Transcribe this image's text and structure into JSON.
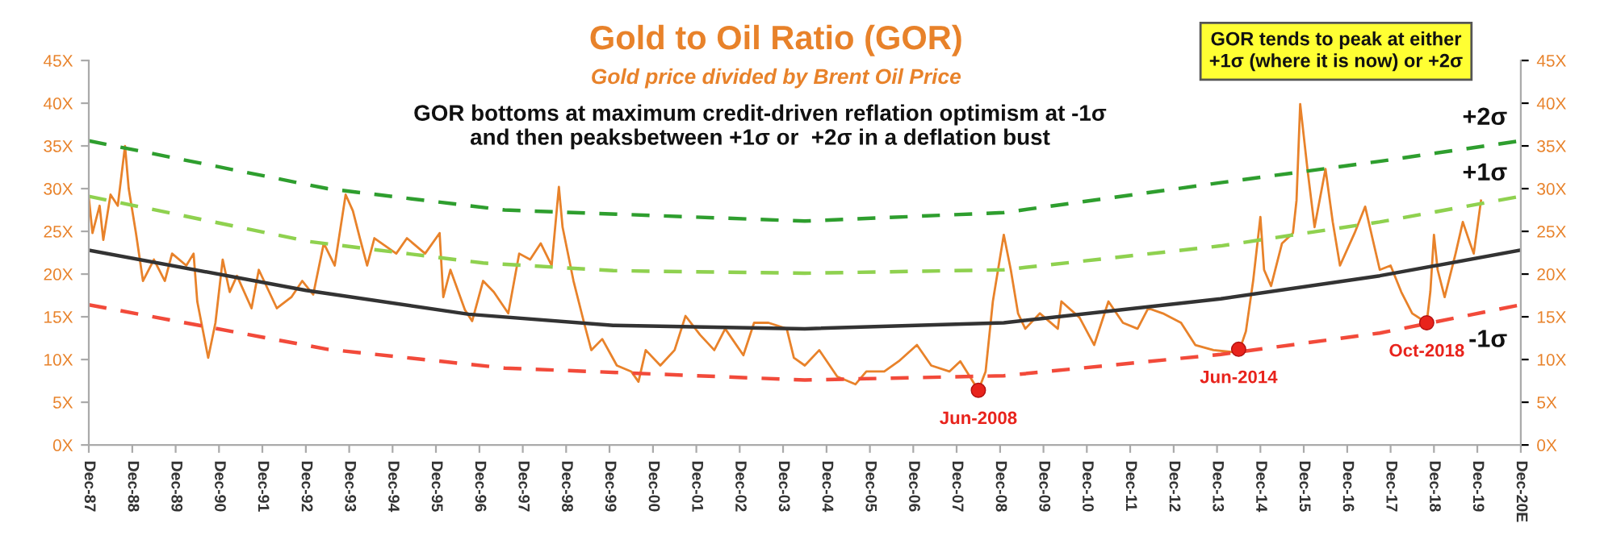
{
  "chart_data": {
    "type": "line",
    "title": "Gold to Oil Ratio (GOR)",
    "subtitle": "Gold price divided by Brent Oil Price",
    "annotations": [
      "GOR bottoms at maximum credit-driven reflation optimism at -1σ\nand then peaksbetween +1σ or  +2σ in a deflation bust",
      "GOR tends to peak at either\n+1σ (where it is now) or +2σ",
      {
        "text": "Jun-2008",
        "x": "2008-06",
        "y": 6.4
      },
      {
        "text": "Jun-2014",
        "x": "2014-06",
        "y": 11.2
      },
      {
        "text": "Oct-2018",
        "x": "2018-10",
        "y": 14.3
      }
    ],
    "series": [
      {
        "color": "#e8822a",
        "line_style": "solid",
        "x": [
          "1987-12",
          "1988-01",
          "1988-03",
          "1988-04",
          "1988-06",
          "1988-08",
          "1988-10",
          "1988-11",
          "1989-01",
          "1989-03",
          "1989-06",
          "1989-09",
          "1989-11",
          "1990-03",
          "1990-05",
          "1990-06",
          "1990-09",
          "1990-11",
          "1991-01",
          "1991-03",
          "1991-05",
          "1991-09",
          "1991-11",
          "1992-04",
          "1992-08",
          "1992-11",
          "1993-02",
          "1993-05",
          "1993-08",
          "1993-11",
          "1994-01",
          "1994-03",
          "1994-05",
          "1994-07",
          "1995-01",
          "1995-04",
          "1995-09",
          "1996-01",
          "1996-02",
          "1996-04",
          "1996-08",
          "1996-10",
          "1997-01",
          "1997-04",
          "1997-08",
          "1997-11",
          "1998-02",
          "1998-05",
          "1998-08",
          "1998-10",
          "1998-11",
          "1999-02",
          "1999-05",
          "1999-07",
          "1999-10",
          "2000-02",
          "2000-06",
          "2000-08",
          "2000-10",
          "2001-02",
          "2001-06",
          "2001-09",
          "2002-01",
          "2002-05",
          "2002-08",
          "2003-01",
          "2003-04",
          "2003-08",
          "2004-01",
          "2004-03",
          "2004-06",
          "2004-10",
          "2005-03",
          "2005-08",
          "2005-11",
          "2006-04",
          "2006-08",
          "2007-01",
          "2007-05",
          "2007-10",
          "2008-01",
          "2008-06",
          "2008-08",
          "2008-10",
          "2009-01",
          "2009-03",
          "2009-05",
          "2009-07",
          "2009-11",
          "2010-04",
          "2010-05",
          "2010-10",
          "2011-02",
          "2011-06",
          "2011-10",
          "2012-02",
          "2012-05",
          "2012-09",
          "2013-02",
          "2013-06",
          "2013-11",
          "2014-06",
          "2014-08",
          "2014-10",
          "2014-12",
          "2015-01",
          "2015-03",
          "2015-06",
          "2015-09",
          "2015-10",
          "2015-11",
          "2016-01",
          "2016-03",
          "2016-06",
          "2016-08",
          "2016-10",
          "2017-02",
          "2017-05",
          "2017-07",
          "2017-09",
          "2017-12",
          "2018-03",
          "2018-06",
          "2018-10",
          "2018-11",
          "2018-12",
          "2019-01",
          "2019-03",
          "2019-06",
          "2019-08",
          "2019-10",
          "2019-11",
          "2020-01"
        ],
        "values": [
          29,
          24.8,
          28,
          24,
          29.3,
          28,
          35,
          30,
          24.8,
          19.2,
          21.7,
          19.2,
          22.4,
          21,
          22.4,
          16.8,
          10.2,
          14.3,
          21.7,
          17.9,
          19.8,
          16,
          20.5,
          16,
          17.3,
          19.2,
          17.6,
          23.6,
          21,
          29.3,
          27.4,
          24.2,
          21,
          24.2,
          22.4,
          24.2,
          22.4,
          24.8,
          17.3,
          20.5,
          15.8,
          14.5,
          19.2,
          17.9,
          15.4,
          22.4,
          21.7,
          23.6,
          21,
          30.2,
          25.5,
          19.2,
          14.3,
          11.1,
          12.4,
          9.3,
          8.6,
          7.4,
          11.1,
          9.3,
          11.1,
          15.1,
          12.9,
          11.1,
          13.6,
          10.5,
          14.3,
          14.3,
          13.6,
          10.2,
          9.3,
          11.1,
          8,
          7.1,
          8.6,
          8.6,
          9.8,
          11.7,
          9.3,
          8.6,
          9.8,
          6.4,
          8.6,
          16.8,
          24.6,
          20.5,
          15.4,
          13.6,
          15.4,
          13.6,
          16.8,
          14.9,
          11.7,
          16.8,
          14.3,
          13.6,
          16,
          15.4,
          14.3,
          11.7,
          11.1,
          10.8,
          13.3,
          19.2,
          26.7,
          20.5,
          18.6,
          23.6,
          24.8,
          28.6,
          39.9,
          32.3,
          25.5,
          32.3,
          26.1,
          21,
          24.8,
          27.9,
          24.2,
          20.5,
          21,
          17.9,
          15.4,
          14.3,
          18,
          24.6,
          20.5,
          17.3,
          22.4,
          26.1,
          23.6,
          22.4,
          28.6
        ]
      },
      {
        "color": "#333333",
        "line_style": "solid",
        "x": [
          "1987-12",
          "1992-12",
          "1996-09",
          "2000-01",
          "2004-06",
          "2009-01",
          "2014-01",
          "2017-09",
          "2020-12"
        ],
        "values": [
          22.8,
          18.1,
          15.3,
          14.0,
          13.6,
          14.3,
          17.1,
          19.8,
          22.8
        ]
      },
      {
        "name": "+2σ",
        "color": "#2e9e2e",
        "line_style": "dashed",
        "x": [
          "1987-12",
          "1993-06",
          "1997-07",
          "2004-06",
          "2009-01",
          "2014-01",
          "2017-09",
          "2020-12"
        ],
        "values": [
          35.6,
          30,
          27.5,
          26.2,
          27.2,
          30.7,
          33.2,
          35.6
        ]
      },
      {
        "name": "+1σ",
        "color": "#8fd14f",
        "line_style": "dashed",
        "x": [
          "1987-12",
          "1993-01",
          "1997-01",
          "2000-01",
          "2004-06",
          "2009-01",
          "2014-01",
          "2017-09",
          "2020-12"
        ],
        "values": [
          29.1,
          23.8,
          21.3,
          20.4,
          20.1,
          20.5,
          23.3,
          26.1,
          29.1
        ]
      },
      {
        "name": "-1σ",
        "color": "#f24a3a",
        "line_style": "dashed",
        "x": [
          "1987-12",
          "1993-06",
          "1997-07",
          "2004-06",
          "2009-01",
          "2014-01",
          "2017-09",
          "2020-12"
        ],
        "values": [
          16.4,
          11.2,
          9.0,
          7.6,
          8.1,
          10.6,
          13.1,
          16.4
        ]
      },
      {
        "type": "scatter",
        "marker": "circle",
        "color": "#e8231c",
        "x": [
          "2008-06",
          "2014-06",
          "2018-10"
        ],
        "values": [
          6.4,
          11.2,
          14.3
        ]
      }
    ],
    "xlim": [
      "1987-12",
      "2020-12"
    ],
    "xticks": [
      {
        "value": "1987-12",
        "label": "Dec-87"
      },
      {
        "value": "1988-12",
        "label": "Dec-88"
      },
      {
        "value": "1989-12",
        "label": "Dec-89"
      },
      {
        "value": "1990-12",
        "label": "Dec-90"
      },
      {
        "value": "1991-12",
        "label": "Dec-91"
      },
      {
        "value": "1992-12",
        "label": "Dec-92"
      },
      {
        "value": "1993-12",
        "label": "Dec-93"
      },
      {
        "value": "1994-12",
        "label": "Dec-94"
      },
      {
        "value": "1995-12",
        "label": "Dec-95"
      },
      {
        "value": "1996-12",
        "label": "Dec-96"
      },
      {
        "value": "1997-12",
        "label": "Dec-97"
      },
      {
        "value": "1998-12",
        "label": "Dec-98"
      },
      {
        "value": "1999-12",
        "label": "Dec-99"
      },
      {
        "value": "2000-12",
        "label": "Dec-00"
      },
      {
        "value": "2001-12",
        "label": "Dec-01"
      },
      {
        "value": "2002-12",
        "label": "Dec-02"
      },
      {
        "value": "2003-12",
        "label": "Dec-03"
      },
      {
        "value": "2004-12",
        "label": "Dec-04"
      },
      {
        "value": "2005-12",
        "label": "Dec-05"
      },
      {
        "value": "2006-12",
        "label": "Dec-06"
      },
      {
        "value": "2007-12",
        "label": "Dec-07"
      },
      {
        "value": "2008-12",
        "label": "Dec-08"
      },
      {
        "value": "2009-12",
        "label": "Dec-09"
      },
      {
        "value": "2010-12",
        "label": "Dec-10"
      },
      {
        "value": "2011-12",
        "label": "Dec-11"
      },
      {
        "value": "2012-12",
        "label": "Dec-12"
      },
      {
        "value": "2013-12",
        "label": "Dec-13"
      },
      {
        "value": "2014-12",
        "label": "Dec-14"
      },
      {
        "value": "2015-12",
        "label": "Dec-15"
      },
      {
        "value": "2016-12",
        "label": "Dec-16"
      },
      {
        "value": "2017-12",
        "label": "Dec-17"
      },
      {
        "value": "2018-12",
        "label": "Dec-18"
      },
      {
        "value": "2019-12",
        "label": "Dec-19"
      },
      {
        "value": "2020-12",
        "label": "Dec-20E"
      }
    ],
    "ylim": [
      0,
      45
    ],
    "yticks": [
      {
        "value": 0,
        "label": "0X"
      },
      {
        "value": 5,
        "label": "5X"
      },
      {
        "value": 10,
        "label": "10X"
      },
      {
        "value": 15,
        "label": "15X"
      },
      {
        "value": 20,
        "label": "20X"
      },
      {
        "value": 25,
        "label": "25X"
      },
      {
        "value": 30,
        "label": "30X"
      },
      {
        "value": 35,
        "label": "35X"
      },
      {
        "value": 40,
        "label": "40X"
      },
      {
        "value": 45,
        "label": "45X"
      }
    ],
    "y2lim": [
      0,
      45
    ],
    "y2ticks": [
      {
        "value": 0,
        "label": "0X"
      },
      {
        "value": 5,
        "label": "5X"
      },
      {
        "value": 10,
        "label": "10X"
      },
      {
        "value": 15,
        "label": "15X"
      },
      {
        "value": 20,
        "label": "20X"
      },
      {
        "value": 25,
        "label": "25X"
      },
      {
        "value": 30,
        "label": "30X"
      },
      {
        "value": 35,
        "label": "35X"
      },
      {
        "value": 40,
        "label": "40X"
      },
      {
        "value": 45,
        "label": "45X"
      }
    ],
    "grid": false
  }
}
